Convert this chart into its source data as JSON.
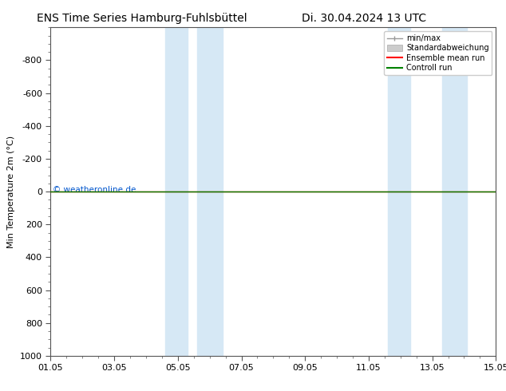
{
  "title_left": "ENS Time Series Hamburg-Fuhlsbüttel",
  "title_right": "Di. 30.04.2024 13 UTC",
  "ylabel": "Min Temperature 2m (°C)",
  "ylim_top": -1000,
  "ylim_bottom": 1000,
  "yticks": [
    -800,
    -600,
    -400,
    -200,
    0,
    200,
    400,
    600,
    800,
    1000
  ],
  "xtick_labels": [
    "01.05",
    "03.05",
    "05.05",
    "07.05",
    "09.05",
    "11.05",
    "13.05",
    "15.05"
  ],
  "xtick_positions": [
    0,
    2,
    4,
    6,
    8,
    10,
    12,
    14
  ],
  "shaded_bands": [
    {
      "x_start": 3.6,
      "x_end": 4.3
    },
    {
      "x_start": 4.6,
      "x_end": 5.4
    },
    {
      "x_start": 10.6,
      "x_end": 11.3
    },
    {
      "x_start": 12.3,
      "x_end": 13.1
    }
  ],
  "shade_color": "#d6e8f5",
  "control_run_color": "#008000",
  "ensemble_mean_color": "#ff0000",
  "minmax_color": "#999999",
  "stddev_color": "#cccccc",
  "copyright_text": "© weatheronline.de",
  "copyright_color": "#0055cc",
  "background_color": "#ffffff",
  "legend_labels": [
    "min/max",
    "Standardabweichung",
    "Ensemble mean run",
    "Controll run"
  ],
  "legend_colors": [
    "#999999",
    "#cccccc",
    "#ff0000",
    "#008000"
  ],
  "title_fontsize": 10,
  "axis_fontsize": 8,
  "tick_fontsize": 8,
  "figwidth": 6.34,
  "figheight": 4.9,
  "dpi": 100
}
